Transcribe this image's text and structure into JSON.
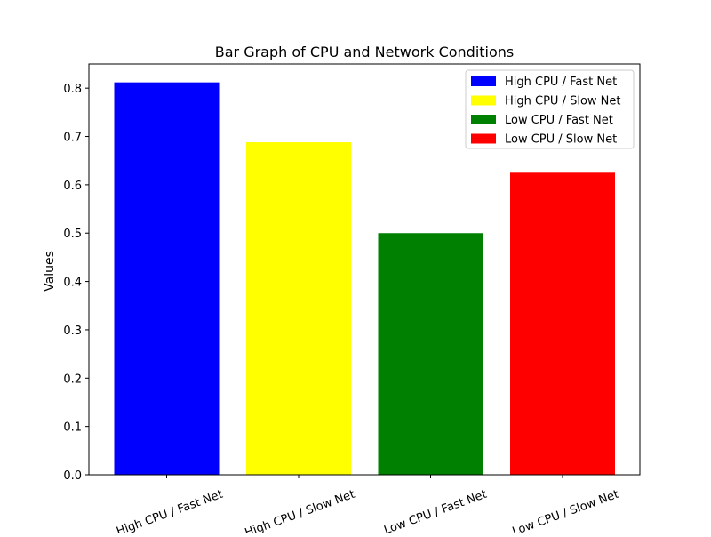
{
  "chart_data": {
    "type": "bar",
    "title": "Bar Graph of CPU and Network Conditions",
    "xlabel": "",
    "ylabel": "Values",
    "categories": [
      "High CPU / Fast Net",
      "High CPU / Slow Net",
      "Low CPU / Fast Net",
      "Low CPU / Slow Net"
    ],
    "values": [
      0.812,
      0.688,
      0.5,
      0.625
    ],
    "colors": [
      "#0000ff",
      "#ffff00",
      "#008000",
      "#ff0000"
    ],
    "ylim": [
      0,
      0.85
    ],
    "yticks": [
      0.0,
      0.1,
      0.2,
      0.3,
      0.4,
      0.5,
      0.6,
      0.7,
      0.8
    ],
    "ytick_labels": [
      "0.0",
      "0.1",
      "0.2",
      "0.3",
      "0.4",
      "0.5",
      "0.6",
      "0.7",
      "0.8"
    ],
    "xtick_rotation": 20,
    "grid": false,
    "legend": {
      "placement": "top-right",
      "entries": [
        "High CPU / Fast Net",
        "High CPU / Slow Net",
        "Low CPU / Fast Net",
        "Low CPU / Slow Net"
      ]
    }
  }
}
